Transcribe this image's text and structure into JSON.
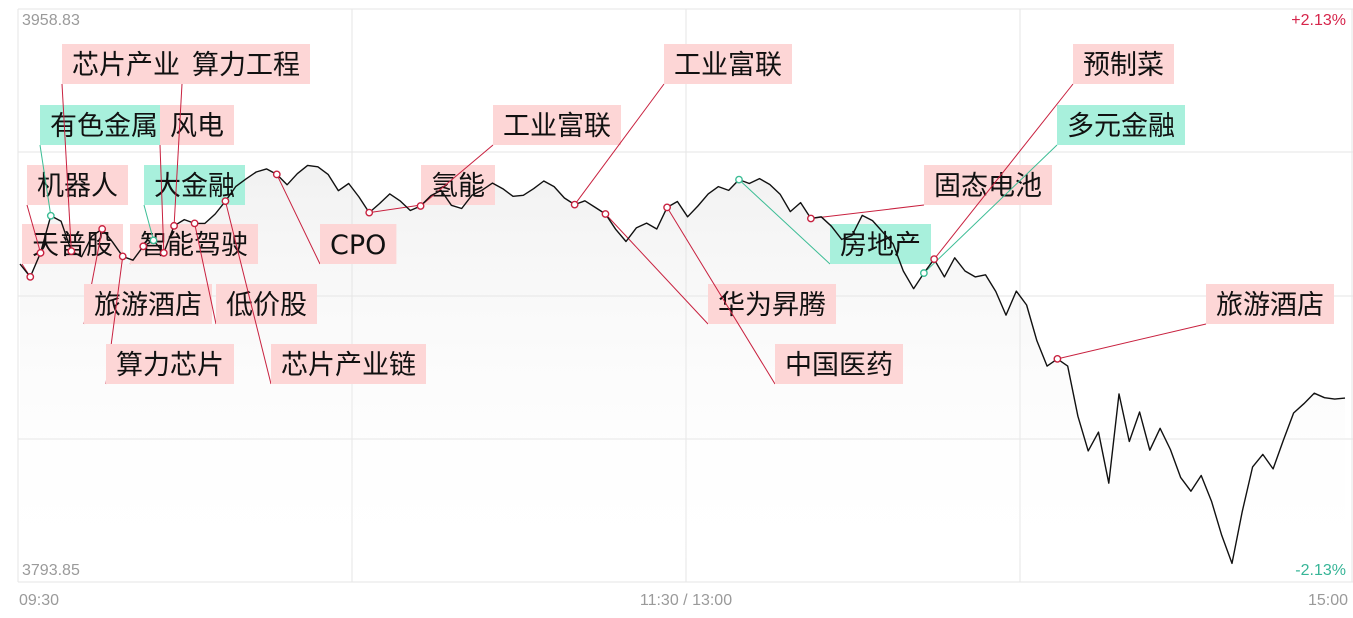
{
  "chart_data": {
    "type": "line",
    "y_top_label": "3958.83",
    "y_bottom_label": "3793.85",
    "pct_top_label": "+2.13%",
    "pct_bottom_label": "-2.13%",
    "ylim": [
      3793.85,
      3958.83
    ],
    "x_tick_labels": [
      "09:30",
      "11:30 / 13:00",
      "15:00"
    ],
    "series": [
      {
        "values": [
          3885.4,
          3881.7,
          3888.6,
          3899.3,
          3897.7,
          3889.1,
          3887.5,
          3893.4,
          3895.5,
          3891.8,
          3887.6,
          3886.5,
          3890.5,
          3892.2,
          3888.6,
          3896.4,
          3898.2,
          3897.1,
          3897.1,
          3899.8,
          3903.5,
          3907.7,
          3909.9,
          3911.9,
          3912.8,
          3911.2,
          3908.2,
          3911.4,
          3913.8,
          3913.4,
          3911.2,
          3906.5,
          3908.6,
          3904.7,
          3900.2,
          3902.8,
          3905.6,
          3903.6,
          3900.8,
          3902.1,
          3905.1,
          3906.6,
          3902.3,
          3901.4,
          3905.2,
          3906.7,
          3908.7,
          3907.1,
          3904.9,
          3905.2,
          3907.1,
          3909.3,
          3907.7,
          3904.4,
          3902.5,
          3903.6,
          3901.7,
          3899.8,
          3895.4,
          3891.9,
          3895.8,
          3897.2,
          3895.5,
          3901.7,
          3903.4,
          3899.0,
          3902.1,
          3905.6,
          3907.7,
          3906.6,
          3909.7,
          3908.6,
          3910.0,
          3908.3,
          3905.5,
          3900.5,
          3903.1,
          3898.5,
          3899.0,
          3896.3,
          3892.5,
          3893.6,
          3899.4,
          3897.9,
          3894.6,
          3891.2,
          3883.4,
          3878.3,
          3882.8,
          3886.8,
          3881.7,
          3887.2,
          3883.4,
          3881.7,
          3882.3,
          3877.5,
          3870.7,
          3877.6,
          3873.6,
          3863.3,
          3856.0,
          3858.1,
          3856.0,
          3841.6,
          3831.6,
          3837.0,
          3822.3,
          3848.0,
          3834.3,
          3842.8,
          3831.8,
          3838.1,
          3832.0,
          3823.9,
          3820.0,
          3824.5,
          3817.1,
          3807.3,
          3799.2,
          3814.2,
          3827.0,
          3830.6,
          3826.4,
          3834.7,
          3842.5,
          3845.2,
          3848.2,
          3846.9,
          3846.5,
          3846.8
        ]
      }
    ],
    "annotations": [
      {
        "label": "天普股",
        "tone": "red",
        "index": 1
      },
      {
        "label": "机器人",
        "tone": "red",
        "index": 2
      },
      {
        "label": "有色金属",
        "tone": "green",
        "index": 3
      },
      {
        "label": "芯片产业",
        "tone": "red",
        "index": 5
      },
      {
        "label": "旅游酒店",
        "tone": "red",
        "index": 8
      },
      {
        "label": "算力芯片",
        "tone": "red",
        "index": 10
      },
      {
        "label": "智能驾驶",
        "tone": "red",
        "index": 12
      },
      {
        "label": "大金融",
        "tone": "green",
        "index": 13
      },
      {
        "label": "风电",
        "tone": "red",
        "index": 14
      },
      {
        "label": "算力工程",
        "tone": "red",
        "index": 15
      },
      {
        "label": "低价股",
        "tone": "red",
        "index": 17
      },
      {
        "label": "芯片产业链",
        "tone": "red",
        "index": 20
      },
      {
        "label": "CPO",
        "tone": "red",
        "index": 25
      },
      {
        "label": "氢能",
        "tone": "red",
        "index": 34
      },
      {
        "label": "工业富联",
        "tone": "red",
        "index": 39
      },
      {
        "label": "工业富联",
        "tone": "red",
        "index": 54
      },
      {
        "label": "华为昇腾",
        "tone": "red",
        "index": 57
      },
      {
        "label": "中国医药",
        "tone": "red",
        "index": 63
      },
      {
        "label": "房地产",
        "tone": "green",
        "index": 70
      },
      {
        "label": "固态电池",
        "tone": "red",
        "index": 77
      },
      {
        "label": "多元金融",
        "tone": "green",
        "index": 88
      },
      {
        "label": "预制菜",
        "tone": "red",
        "index": 89
      },
      {
        "label": "旅游酒店",
        "tone": "red",
        "index": 101
      }
    ]
  },
  "colors": {
    "line": "#111111",
    "red_tag": "#fdd6d6",
    "green_tag": "#a8f0dc",
    "red_marker": "#c8213f",
    "green_marker": "#3cbd95",
    "grid": "#e6e6e6",
    "axis_text": "#9a9a9a"
  }
}
